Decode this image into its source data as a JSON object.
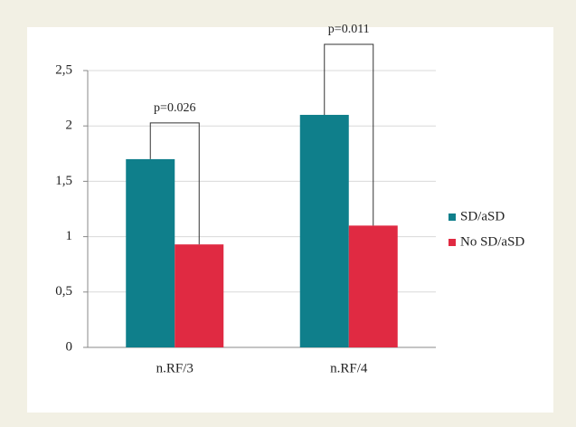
{
  "chart_data": {
    "type": "bar",
    "categories": [
      "n.RF/3",
      "n.RF/4"
    ],
    "series": [
      {
        "name": "SD/aSD",
        "color": "#0f7f8b",
        "values": [
          1.7,
          2.1
        ]
      },
      {
        "name": "No SD/aSD",
        "color": "#e02a42",
        "values": [
          0.93,
          1.1
        ]
      }
    ],
    "ylim": [
      0,
      2.5
    ],
    "yticks": [
      0,
      {
        "value": 0.5,
        "label": "0,5"
      },
      1,
      {
        "value": 1.5,
        "label": "1,5"
      },
      2,
      {
        "value": 2.5,
        "label": "2,5"
      }
    ],
    "grid": true,
    "legend": "right",
    "annotations": [
      "p=0.026",
      "p=0.011"
    ]
  }
}
